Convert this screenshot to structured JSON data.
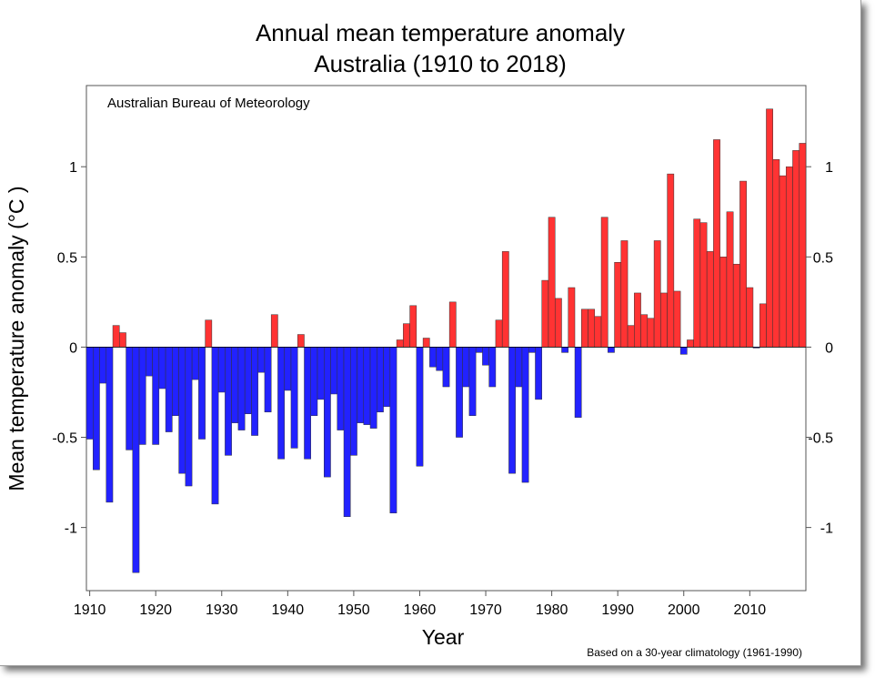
{
  "chart_data": {
    "type": "bar",
    "title": "Annual mean temperature anomaly",
    "subtitle": "Australia (1910 to 2018)",
    "xlabel": "Year",
    "ylabel": "Mean temperature anomaly (°C )",
    "source_label": "Australian Bureau of Meteorology",
    "footnote": "Based on a 30-year climatology (1961-1990)",
    "xlim": [
      1909.5,
      2018.5
    ],
    "ylim": [
      -1.35,
      1.45
    ],
    "x_ticks": [
      1910,
      1920,
      1930,
      1940,
      1950,
      1960,
      1970,
      1980,
      1990,
      2000,
      2010
    ],
    "y_ticks": [
      -1,
      -0.5,
      0,
      0.5,
      1
    ],
    "y_tick_labels": [
      "-1",
      "-0.5",
      "0",
      "0.5",
      "1"
    ],
    "grid": false,
    "colors": {
      "positive": "#ff3333",
      "negative": "#2222ff"
    },
    "x": [
      1910,
      1911,
      1912,
      1913,
      1914,
      1915,
      1916,
      1917,
      1918,
      1919,
      1920,
      1921,
      1922,
      1923,
      1924,
      1925,
      1926,
      1927,
      1928,
      1929,
      1930,
      1931,
      1932,
      1933,
      1934,
      1935,
      1936,
      1937,
      1938,
      1939,
      1940,
      1941,
      1942,
      1943,
      1944,
      1945,
      1946,
      1947,
      1948,
      1949,
      1950,
      1951,
      1952,
      1953,
      1954,
      1955,
      1956,
      1957,
      1958,
      1959,
      1960,
      1961,
      1962,
      1963,
      1964,
      1965,
      1966,
      1967,
      1968,
      1969,
      1970,
      1971,
      1972,
      1973,
      1974,
      1975,
      1976,
      1977,
      1978,
      1979,
      1980,
      1981,
      1982,
      1983,
      1984,
      1985,
      1986,
      1987,
      1988,
      1989,
      1990,
      1991,
      1992,
      1993,
      1994,
      1995,
      1996,
      1997,
      1998,
      1999,
      2000,
      2001,
      2002,
      2003,
      2004,
      2005,
      2006,
      2007,
      2008,
      2009,
      2010,
      2011,
      2012,
      2013,
      2014,
      2015,
      2016,
      2017,
      2018
    ],
    "values": [
      -0.51,
      -0.68,
      -0.2,
      -0.86,
      0.12,
      0.08,
      -0.57,
      -1.25,
      -0.54,
      -0.16,
      -0.54,
      -0.23,
      -0.47,
      -0.38,
      -0.7,
      -0.77,
      -0.18,
      -0.51,
      0.15,
      -0.87,
      -0.25,
      -0.6,
      -0.42,
      -0.46,
      -0.37,
      -0.49,
      -0.14,
      -0.36,
      0.18,
      -0.62,
      -0.24,
      -0.56,
      0.07,
      -0.62,
      -0.38,
      -0.29,
      -0.72,
      -0.26,
      -0.46,
      -0.94,
      -0.6,
      -0.42,
      -0.43,
      -0.45,
      -0.36,
      -0.33,
      -0.92,
      0.04,
      0.13,
      0.23,
      -0.66,
      0.05,
      -0.11,
      -0.13,
      -0.22,
      0.25,
      -0.5,
      -0.22,
      -0.38,
      -0.03,
      -0.1,
      -0.22,
      0.15,
      0.53,
      -0.7,
      -0.22,
      -0.75,
      -0.03,
      -0.29,
      0.37,
      0.72,
      0.27,
      -0.03,
      0.33,
      -0.39,
      0.21,
      0.21,
      0.17,
      0.72,
      -0.03,
      0.47,
      0.59,
      0.12,
      0.3,
      0.18,
      0.16,
      0.59,
      0.3,
      0.96,
      0.31,
      -0.04,
      0.04,
      0.71,
      0.69,
      0.53,
      1.15,
      0.5,
      0.75,
      0.46,
      0.92,
      0.33,
      -0.005,
      0.24,
      1.32,
      1.04,
      0.95,
      1.0,
      1.09,
      1.13
    ]
  }
}
